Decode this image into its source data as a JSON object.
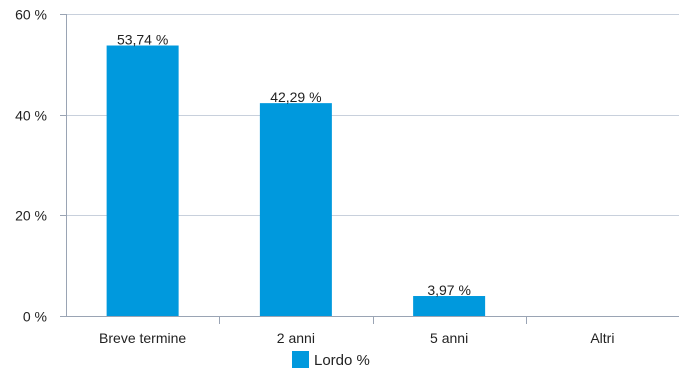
{
  "chart_data": {
    "type": "bar",
    "categories": [
      "Breve termine",
      "2 anni",
      "5 anni",
      "Altri"
    ],
    "series": [
      {
        "name": "Lordo %",
        "values": [
          53.74,
          42.29,
          3.97,
          0
        ],
        "value_labels": [
          "53,74 %",
          "42,29 %",
          "3,97 %",
          ""
        ]
      }
    ],
    "y_ticks": [
      0,
      20,
      40,
      60
    ],
    "y_tick_labels": [
      "0 %",
      "20 %",
      "40 %",
      "60 %"
    ],
    "ylim": [
      0,
      60
    ],
    "grid": true,
    "legend_position": "bottom-center",
    "bar_color": "#0099dd",
    "grid_color": "#c8d0dc",
    "axis_color": "#9aa4b4",
    "title": "",
    "xlabel": "",
    "ylabel": ""
  }
}
